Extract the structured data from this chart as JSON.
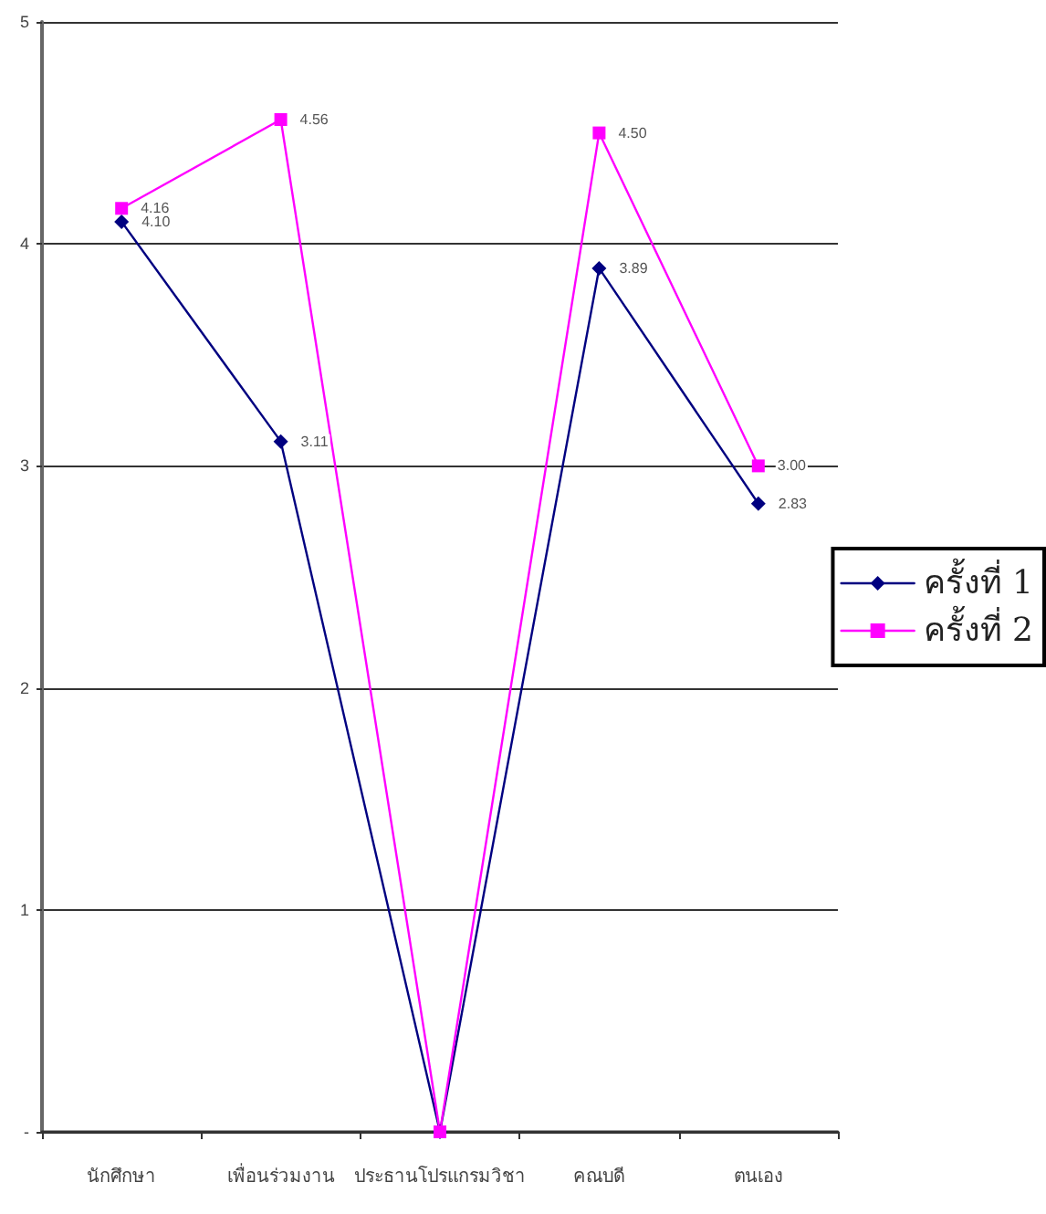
{
  "chart_data": {
    "type": "line",
    "categories": [
      "นักศึกษา",
      "เพื่อนร่วมงาน",
      "ประธานโปรแกรมวิชา",
      "คณบดี",
      "ตนเอง"
    ],
    "series": [
      {
        "name": "ครั้งที่ 1",
        "color": "#000080",
        "marker": "diamond",
        "values": [
          4.1,
          3.11,
          0,
          3.89,
          2.83
        ],
        "value_labels": [
          "4.10",
          "3.11",
          null,
          "3.89",
          "2.83"
        ]
      },
      {
        "name": "ครั้งที่ 2",
        "color": "#ff00ff",
        "marker": "square",
        "values": [
          4.16,
          4.56,
          0,
          4.5,
          3.0
        ],
        "value_labels": [
          "4.16",
          "4.56",
          null,
          "4.50",
          "3.00"
        ]
      }
    ],
    "ylim": [
      0,
      5
    ],
    "yticks": [
      {
        "value": 0,
        "label": "-"
      },
      1,
      2,
      3,
      4,
      5
    ],
    "grid": "y",
    "legend": "right"
  }
}
